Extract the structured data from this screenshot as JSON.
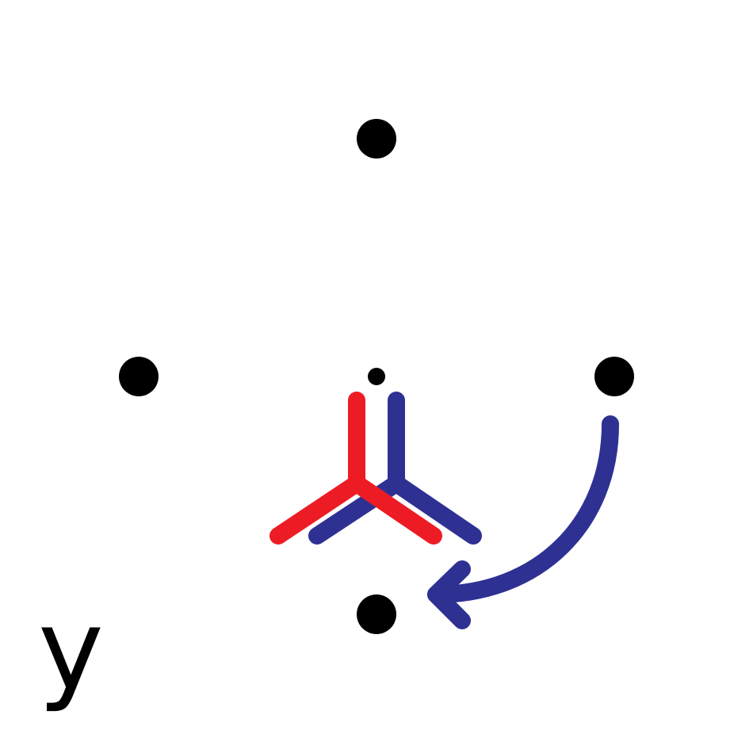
{
  "diagram": {
    "axis_label": "y",
    "colors": {
      "points": "#000000",
      "red_symbol": "#ed1c24",
      "blue_symbol": "#2e3192",
      "rotation_arrow": "#2e3192",
      "label": "#000000"
    },
    "elements": [
      "point-top",
      "point-left",
      "point-right",
      "point-bottom",
      "center-point",
      "red-three-pronged-symbol",
      "blue-three-pronged-symbol",
      "curved-rotation-arrow"
    ]
  }
}
